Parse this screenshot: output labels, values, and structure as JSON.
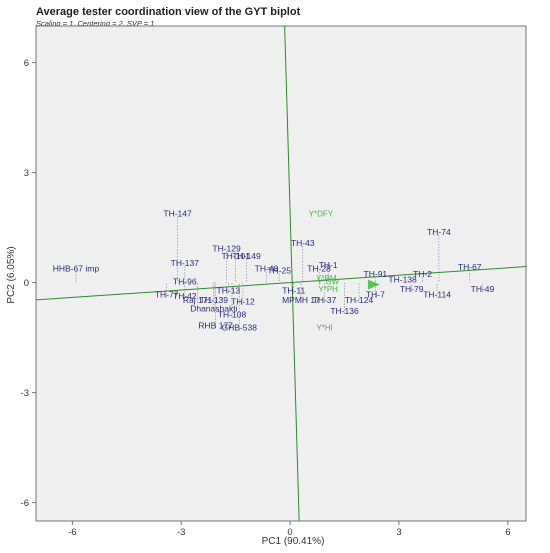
{
  "chart_data": {
    "type": "scatter",
    "title": "Average tester coordination view of the GYT biplot",
    "subtitle": "Scaling = 1, Centering = 2, SVP = 1",
    "xlabel": "PC1 (90.41%)",
    "ylabel": "PC2 (6.05%)",
    "xlim": [
      -7,
      6.5
    ],
    "ylim": [
      -6.5,
      7
    ],
    "xticks": [
      -6,
      -3,
      0,
      3,
      6
    ],
    "yticks": [
      -6,
      -3,
      0,
      3,
      6
    ],
    "grid": false,
    "colors": {
      "genotype": "#2a2a7a",
      "trait": "#4bb34b",
      "axis_line": "#2d8a2d",
      "panel": "#efefef"
    },
    "genotypes": [
      {
        "label": "HHB-67 imp",
        "x": -5.9,
        "y": 0.3
      },
      {
        "label": "TH-147",
        "x": -3.1,
        "y": 1.8
      },
      {
        "label": "TH-137",
        "x": -2.9,
        "y": 0.45
      },
      {
        "label": "TH-96",
        "x": -2.9,
        "y": -0.05
      },
      {
        "label": "TH-77",
        "x": -3.4,
        "y": -0.4
      },
      {
        "label": "TH-42",
        "x": -2.9,
        "y": -0.45
      },
      {
        "label": "Raj 171",
        "x": -2.55,
        "y": -0.55
      },
      {
        "label": "TH-139",
        "x": -2.1,
        "y": -0.55
      },
      {
        "label": "Dhanashakti",
        "x": -2.1,
        "y": -0.78
      },
      {
        "label": "TH-129",
        "x": -1.75,
        "y": 0.85
      },
      {
        "label": "TH-101",
        "x": -1.5,
        "y": 0.65
      },
      {
        "label": "TH-149",
        "x": -1.2,
        "y": 0.65
      },
      {
        "label": "TH-13",
        "x": -1.7,
        "y": -0.3
      },
      {
        "label": "TH-12",
        "x": -1.3,
        "y": -0.6
      },
      {
        "label": "TH-108",
        "x": -1.6,
        "y": -0.95
      },
      {
        "label": "RHB 177",
        "x": -2.05,
        "y": -1.25
      },
      {
        "label": "GHB-538",
        "x": -1.4,
        "y": -1.3
      },
      {
        "label": "TH-48",
        "x": -0.65,
        "y": 0.3
      },
      {
        "label": "TH-25",
        "x": -0.3,
        "y": 0.25
      },
      {
        "label": "TH-11",
        "x": 0.1,
        "y": -0.3
      },
      {
        "label": "MPMH 17",
        "x": 0.3,
        "y": -0.55
      },
      {
        "label": "TH-43",
        "x": 0.35,
        "y": 1.0
      },
      {
        "label": "TH-28",
        "x": 0.8,
        "y": 0.3
      },
      {
        "label": "TH-1",
        "x": 1.05,
        "y": 0.4
      },
      {
        "label": "TH-37",
        "x": 0.95,
        "y": -0.55
      },
      {
        "label": "TH-136",
        "x": 1.5,
        "y": -0.85
      },
      {
        "label": "TH-124",
        "x": 1.9,
        "y": -0.55
      },
      {
        "label": "TH-7",
        "x": 2.35,
        "y": -0.4
      },
      {
        "label": "TH-91",
        "x": 2.35,
        "y": 0.15
      },
      {
        "label": "TH-138",
        "x": 3.1,
        "y": 0.0
      },
      {
        "label": "TH-2",
        "x": 3.65,
        "y": 0.15
      },
      {
        "label": "TH-79",
        "x": 3.35,
        "y": -0.25
      },
      {
        "label": "TH-114",
        "x": 4.05,
        "y": -0.4
      },
      {
        "label": "TH-74",
        "x": 4.1,
        "y": 1.3
      },
      {
        "label": "TH-67",
        "x": 4.95,
        "y": 0.35
      },
      {
        "label": "TH-49",
        "x": 5.3,
        "y": -0.25
      }
    ],
    "traits": [
      {
        "label": "Y*DFY",
        "x": 0.85,
        "y": 1.8
      },
      {
        "label": "Y*HI",
        "x": 0.95,
        "y": -1.3
      },
      {
        "label": "Y*BM",
        "x": 1.0,
        "y": 0.05
      },
      {
        "label": "Y*PH",
        "x": 1.05,
        "y": -0.25
      },
      {
        "label": "Y*GW",
        "x": 1.05,
        "y": -0.05
      }
    ],
    "average_tester_axis": {
      "slope": 0.06,
      "arrow": {
        "x": 2.2,
        "y": -0.05
      }
    },
    "perpendicular_axis": {
      "x_at_top": -0.15,
      "x_at_bottom": 0.25
    }
  }
}
